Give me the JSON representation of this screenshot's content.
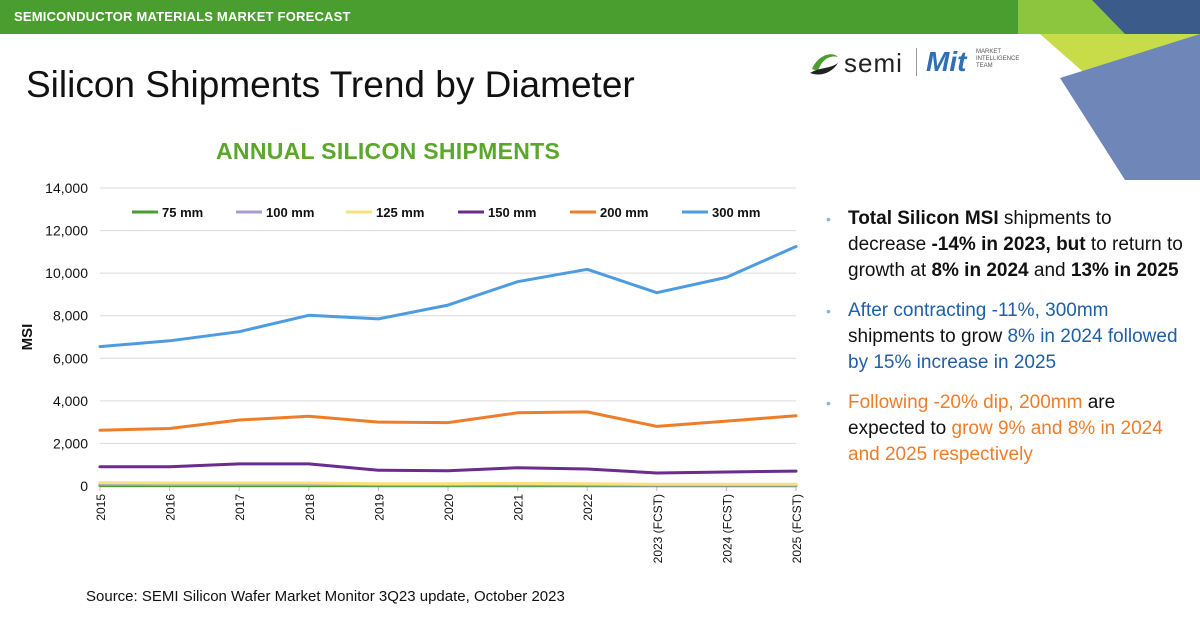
{
  "header": {
    "bar_label": "SEMICONDUCTOR MATERIALS MARKET FORECAST",
    "title": "Silicon Shipments Trend by Diameter"
  },
  "logo": {
    "semi_text": "semi",
    "mit_text": "Mit",
    "mit_sub_1": "MARKET",
    "mit_sub_2": "INTELLIGENCE",
    "mit_sub_3": "TEAM"
  },
  "chart_data": {
    "type": "line",
    "title": "ANNUAL SILICON SHIPMENTS",
    "ylabel": "MSI",
    "xlabel": "",
    "ylim": [
      0,
      14000
    ],
    "yticks": [
      "0",
      "2,000",
      "4,000",
      "6,000",
      "8,000",
      "10,000",
      "12,000",
      "14,000"
    ],
    "grid": true,
    "legend_position": "top",
    "categories": [
      "2015",
      "2016",
      "2017",
      "2018",
      "2019",
      "2020",
      "2021",
      "2022",
      "2023 (FCST)",
      "2024 (FCST)",
      "2025 (FCST)"
    ],
    "series": [
      {
        "name": "75 mm",
        "color": "#4a9e2f",
        "values": [
          20,
          20,
          20,
          20,
          15,
          15,
          15,
          15,
          10,
          10,
          10
        ]
      },
      {
        "name": "100 mm",
        "color": "#a79bd0",
        "values": [
          80,
          70,
          70,
          70,
          60,
          60,
          60,
          50,
          40,
          40,
          40
        ]
      },
      {
        "name": "125 mm",
        "color": "#f6e27a",
        "values": [
          150,
          140,
          140,
          140,
          110,
          110,
          120,
          110,
          80,
          80,
          80
        ]
      },
      {
        "name": "150 mm",
        "color": "#6a2c8f",
        "values": [
          900,
          900,
          1040,
          1040,
          740,
          720,
          860,
          800,
          610,
          660,
          700
        ]
      },
      {
        "name": "200 mm",
        "color": "#ee7d2a",
        "values": [
          2620,
          2700,
          3100,
          3280,
          3000,
          2980,
          3440,
          3480,
          2800,
          3050,
          3300
        ]
      },
      {
        "name": "300 mm",
        "color": "#4d9be0",
        "values": [
          6550,
          6820,
          7250,
          8020,
          7850,
          8500,
          9600,
          10180,
          9080,
          9800,
          11250
        ]
      }
    ]
  },
  "bullets": {
    "b1_bold1": "Total Silicon MSI",
    "b1_text1": " shipments to decrease ",
    "b1_bold2": "-14% in 2023, but",
    "b1_text2": " to return to growth at ",
    "b1_bold3": "8% in 2024",
    "b1_text3": " and ",
    "b1_bold4": "13% in 2025",
    "b2_text1": "After contracting -11%, 300mm",
    "b2_dark1": " shipments to grow",
    "b2_text2": " 8% in 2024 followed by 15% increase in 2025",
    "b3_text1": "Following -20% dip, 200mm",
    "b3_dark1": " are expected to",
    "b3_text2": " grow 9% and 8% in 2024 and 2025 respectively"
  },
  "source": "Source: SEMI  Silicon Wafer Market Monitor 3Q23 update, October 2023",
  "colors": {
    "brand_green": "#4a9e2f",
    "chart_title_green": "#5aa72a",
    "blue_text": "#1f5fa6",
    "orange_text": "#ee7d2a"
  }
}
